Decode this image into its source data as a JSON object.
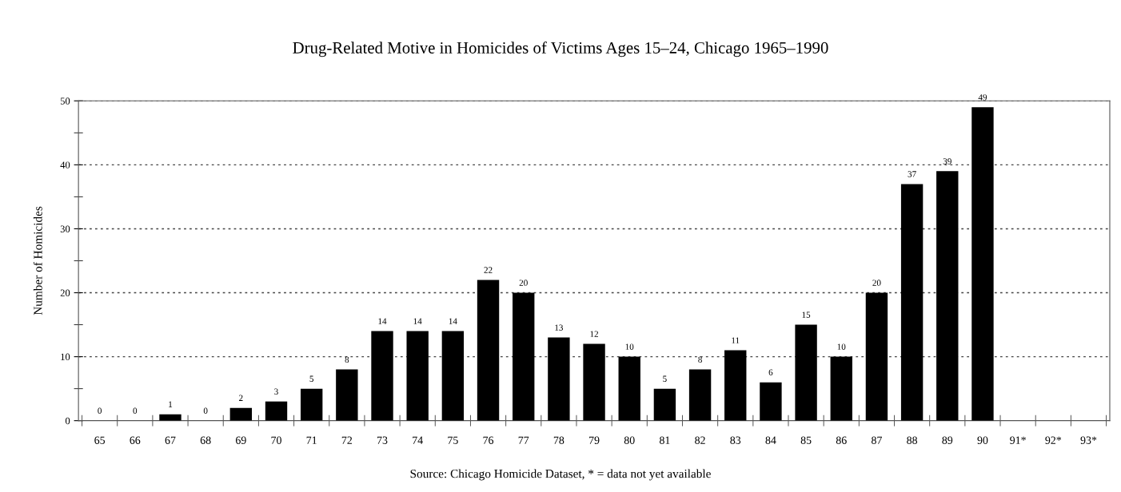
{
  "chart_data": {
    "type": "bar",
    "title": "Drug-Related Motive in Homicides of Victims Ages 15–24, Chicago 1965–1990",
    "ylabel": "Number of Homicides",
    "annotations": [
      "Source: Chicago Homicide Dataset, * = data not yet available"
    ],
    "categories": [
      "65",
      "66",
      "67",
      "68",
      "69",
      "70",
      "71",
      "72",
      "73",
      "74",
      "75",
      "76",
      "77",
      "78",
      "79",
      "80",
      "81",
      "82",
      "83",
      "84",
      "85",
      "86",
      "87",
      "88",
      "89",
      "90",
      "91*",
      "92*",
      "93*"
    ],
    "values": [
      0,
      0,
      1,
      0,
      2,
      3,
      5,
      8,
      14,
      14,
      14,
      22,
      20,
      13,
      12,
      10,
      5,
      8,
      11,
      6,
      15,
      10,
      20,
      37,
      39,
      49,
      null,
      null,
      null
    ],
    "color": "#000000",
    "data_labels": true,
    "ylim": [
      0,
      50
    ],
    "yticks": [
      0,
      {
        "value": 5,
        "label": null
      },
      10,
      {
        "value": 15,
        "label": null
      },
      20,
      {
        "value": 25,
        "label": null
      },
      30,
      {
        "value": 35,
        "label": null
      },
      40,
      {
        "value": 45,
        "label": null
      },
      50
    ],
    "grid": "y"
  }
}
